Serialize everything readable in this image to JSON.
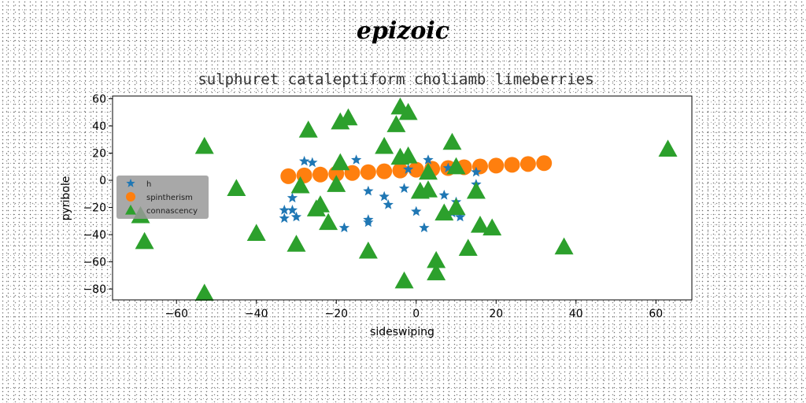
{
  "figure": {
    "suptitle": "epizoic"
  },
  "chart_data": {
    "type": "scatter",
    "title": "sulphuret cataleptiform choliamb limeberries",
    "xlabel": "sideswiping",
    "ylabel": "pyribole",
    "xlim": [
      -76,
      69
    ],
    "ylim": [
      -88,
      62
    ],
    "xticks": [
      -60,
      -40,
      -20,
      0,
      20,
      40,
      60
    ],
    "yticks": [
      -80,
      -60,
      -40,
      -20,
      0,
      20,
      40,
      60
    ],
    "xtick_labels": [
      "−60",
      "−40",
      "−20",
      "0",
      "20",
      "40",
      "60"
    ],
    "ytick_labels": [
      "−80",
      "−60",
      "−40",
      "−20",
      "0",
      "20",
      "40",
      "60"
    ],
    "grid": false,
    "legend": {
      "position": "center-left",
      "background": "#999999"
    },
    "series": [
      {
        "name": "h",
        "marker": "star",
        "color": "#1f77b4",
        "points": [
          [
            -28,
            14
          ],
          [
            -26,
            13
          ],
          [
            -31,
            -13
          ],
          [
            -33,
            -22
          ],
          [
            -33,
            -28
          ],
          [
            -31,
            -22
          ],
          [
            -30,
            -27
          ],
          [
            -15,
            15
          ],
          [
            -12,
            -8
          ],
          [
            -12,
            -29
          ],
          [
            -12,
            -31
          ],
          [
            -18,
            -35
          ],
          [
            -8,
            -12
          ],
          [
            -7,
            -18
          ],
          [
            -3,
            -6
          ],
          [
            0,
            -23
          ],
          [
            2,
            -35
          ],
          [
            3,
            15
          ],
          [
            7,
            -11
          ],
          [
            9,
            -24
          ],
          [
            10,
            -16
          ],
          [
            11,
            -27
          ],
          [
            15,
            -3
          ],
          [
            15,
            6
          ],
          [
            8,
            9
          ],
          [
            -2,
            8
          ]
        ]
      },
      {
        "name": "spintherism",
        "marker": "circle",
        "color": "#ff7f0e",
        "points": [
          [
            -32,
            3.0
          ],
          [
            -28,
            3.6
          ],
          [
            -24,
            4.2
          ],
          [
            -20,
            4.8
          ],
          [
            -16,
            5.4
          ],
          [
            -12,
            6.0
          ],
          [
            -8,
            6.6
          ],
          [
            -4,
            7.2
          ],
          [
            0,
            7.8
          ],
          [
            4,
            8.4
          ],
          [
            8,
            9.0
          ],
          [
            12,
            9.6
          ],
          [
            16,
            10.2
          ],
          [
            20,
            10.8
          ],
          [
            24,
            11.4
          ],
          [
            28,
            12.0
          ],
          [
            32,
            12.6
          ]
        ]
      },
      {
        "name": "connascency",
        "marker": "triangle",
        "color": "#2ca02c",
        "points": [
          [
            -53,
            25
          ],
          [
            -45,
            -6
          ],
          [
            -40,
            -39
          ],
          [
            -69,
            -26
          ],
          [
            -68,
            -45
          ],
          [
            -53,
            -83
          ],
          [
            -30,
            -47
          ],
          [
            -29,
            -4
          ],
          [
            -27,
            37
          ],
          [
            -25,
            -21
          ],
          [
            -24,
            -18
          ],
          [
            -22,
            -31
          ],
          [
            -20,
            -3
          ],
          [
            -19,
            43
          ],
          [
            -19,
            13
          ],
          [
            -17,
            46
          ],
          [
            -12,
            -52
          ],
          [
            -8,
            25
          ],
          [
            -5,
            41
          ],
          [
            -4,
            54
          ],
          [
            -4,
            17
          ],
          [
            -2,
            18
          ],
          [
            -2,
            50
          ],
          [
            -3,
            -74
          ],
          [
            1,
            -8
          ],
          [
            3,
            -7
          ],
          [
            3,
            6
          ],
          [
            5,
            -59
          ],
          [
            5,
            -68
          ],
          [
            7,
            -24
          ],
          [
            9,
            28
          ],
          [
            10,
            10
          ],
          [
            10,
            -20
          ],
          [
            13,
            -50
          ],
          [
            15,
            -8
          ],
          [
            16,
            -33
          ],
          [
            19,
            -35
          ],
          [
            37,
            -49
          ],
          [
            63,
            23
          ]
        ]
      }
    ]
  }
}
